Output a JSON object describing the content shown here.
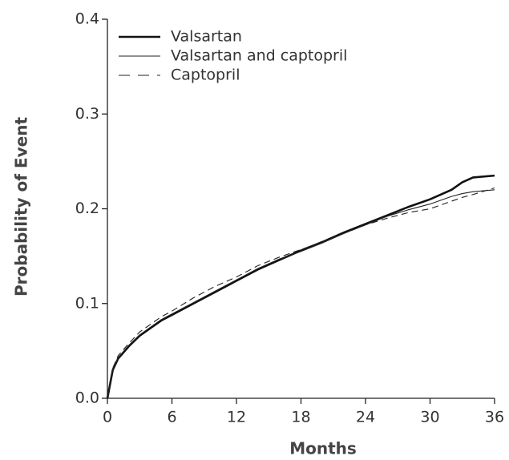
{
  "chart_data": {
    "type": "line",
    "x_label": "Months",
    "y_label": "Probability of Event",
    "x": [
      0,
      0.5,
      1,
      2,
      3,
      4,
      5,
      6,
      8,
      10,
      12,
      14,
      16,
      18,
      20,
      22,
      24,
      26,
      28,
      30,
      32,
      33,
      34,
      36
    ],
    "series": [
      {
        "name": "Valsartan",
        "color": "#111111",
        "width": 2.6,
        "dash": false,
        "values": [
          0,
          0.03,
          0.042,
          0.055,
          0.066,
          0.074,
          0.082,
          0.088,
          0.1,
          0.112,
          0.124,
          0.136,
          0.146,
          0.156,
          0.165,
          0.175,
          0.184,
          0.193,
          0.202,
          0.21,
          0.22,
          0.228,
          0.233,
          0.235
        ]
      },
      {
        "name": "Valsartan and captopril",
        "color": "#222222",
        "width": 1.1,
        "dash": false,
        "values": [
          0,
          0.031,
          0.043,
          0.056,
          0.067,
          0.075,
          0.083,
          0.089,
          0.101,
          0.113,
          0.125,
          0.137,
          0.147,
          0.155,
          0.164,
          0.174,
          0.183,
          0.192,
          0.199,
          0.205,
          0.213,
          0.216,
          0.218,
          0.22
        ]
      },
      {
        "name": "Captopril",
        "color": "#222222",
        "width": 1.1,
        "dash": true,
        "values": [
          0,
          0.032,
          0.045,
          0.058,
          0.07,
          0.078,
          0.086,
          0.092,
          0.106,
          0.118,
          0.128,
          0.14,
          0.149,
          0.157,
          0.165,
          0.174,
          0.183,
          0.19,
          0.196,
          0.2,
          0.208,
          0.212,
          0.215,
          0.222
        ]
      }
    ],
    "xlim": [
      0,
      36
    ],
    "xticks": [
      0,
      6,
      12,
      18,
      24,
      30,
      36
    ],
    "ylim": [
      0,
      0.4
    ],
    "yticks": [
      {
        "value": 0,
        "label": "0.0"
      },
      0.1,
      0.2,
      0.3,
      0.4
    ],
    "legend": "top-left",
    "grid": false
  }
}
